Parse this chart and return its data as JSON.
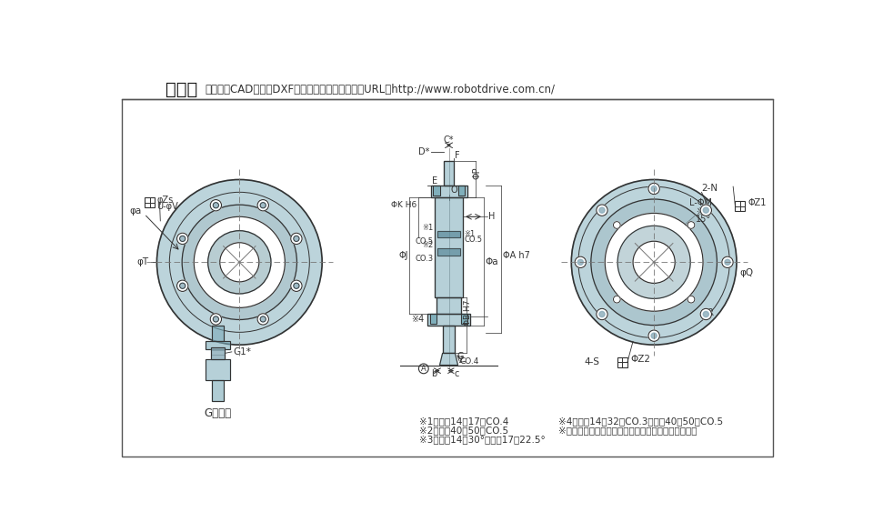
{
  "title_bold": "外形图",
  "title_normal": "本产品的CAD数据（DXF）可从本公司主页下载。URL：http://www.robotdrive.com.cn/",
  "bg_color": "#ffffff",
  "border_color": "#555555",
  "drawing_color": "#7aaab8",
  "line_color": "#333333",
  "dim_color": "#333333",
  "notes_left": [
    "※1：型号14、17为CO.4",
    "※2：型号40、50为CO.5",
    "※3：型号14为30°、型号17为22.5°"
  ],
  "notes_right": [
    "※4：型号14～32为CO.3、型号40、50为CO.5",
    "※尺寸形状的详细情况，请使用交货规格图进行确认。"
  ],
  "small_view_label": "G部扩大",
  "small_view_note": "G1*"
}
